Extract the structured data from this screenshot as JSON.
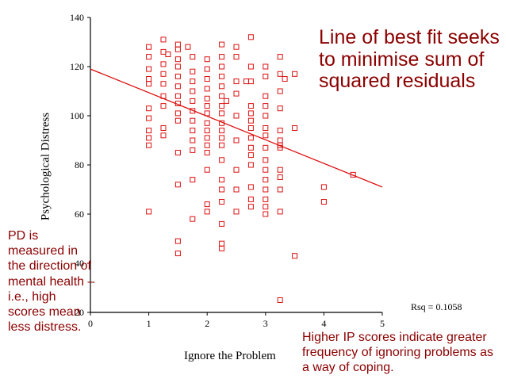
{
  "chart_data": {
    "type": "scatter",
    "xlabel": "Ignore the Problem",
    "ylabel": "Psychological Distress",
    "xlim": [
      0,
      5
    ],
    "ylim": [
      20,
      140
    ],
    "xticks": [
      "0",
      "1",
      "2",
      "3",
      "4",
      "5"
    ],
    "yticks": [
      "20",
      "40",
      "60",
      "80",
      "100",
      "120",
      "140"
    ],
    "rsq_label": "Rsq = 0.1058",
    "marker_color": "#dd1111",
    "fit_line_color": "#dd1111",
    "fit_line": {
      "x": [
        0,
        5
      ],
      "y": [
        119,
        71
      ]
    },
    "points": [
      [
        1,
        128
      ],
      [
        1,
        124
      ],
      [
        1,
        119
      ],
      [
        1,
        115
      ],
      [
        1,
        113
      ],
      [
        1,
        103
      ],
      [
        1,
        99
      ],
      [
        1,
        94
      ],
      [
        1,
        91
      ],
      [
        1,
        88
      ],
      [
        1,
        61
      ],
      [
        1.25,
        131
      ],
      [
        1.25,
        126
      ],
      [
        1.25,
        121
      ],
      [
        1.25,
        117
      ],
      [
        1.25,
        113
      ],
      [
        1.25,
        108
      ],
      [
        1.25,
        104
      ],
      [
        1.25,
        95
      ],
      [
        1.25,
        92
      ],
      [
        1.33,
        125
      ],
      [
        1.5,
        129
      ],
      [
        1.5,
        127
      ],
      [
        1.5,
        123
      ],
      [
        1.5,
        120
      ],
      [
        1.5,
        116
      ],
      [
        1.5,
        112
      ],
      [
        1.5,
        108
      ],
      [
        1.5,
        105
      ],
      [
        1.5,
        101
      ],
      [
        1.5,
        98
      ],
      [
        1.5,
        85
      ],
      [
        1.5,
        72
      ],
      [
        1.5,
        49
      ],
      [
        1.5,
        44
      ],
      [
        1.67,
        128
      ],
      [
        1.75,
        124
      ],
      [
        1.75,
        118
      ],
      [
        1.75,
        114
      ],
      [
        1.75,
        110
      ],
      [
        1.75,
        106
      ],
      [
        1.75,
        102
      ],
      [
        1.75,
        98
      ],
      [
        1.75,
        94
      ],
      [
        1.75,
        90
      ],
      [
        1.75,
        86
      ],
      [
        1.75,
        74
      ],
      [
        1.75,
        58
      ],
      [
        2,
        123
      ],
      [
        2,
        119
      ],
      [
        2,
        115
      ],
      [
        2,
        111
      ],
      [
        2,
        107
      ],
      [
        2,
        104
      ],
      [
        2,
        101
      ],
      [
        2,
        97
      ],
      [
        2,
        94
      ],
      [
        2,
        91
      ],
      [
        2,
        88
      ],
      [
        2,
        85
      ],
      [
        2,
        78
      ],
      [
        2,
        64
      ],
      [
        2,
        61
      ],
      [
        2.25,
        129
      ],
      [
        2.25,
        124
      ],
      [
        2.25,
        120
      ],
      [
        2.25,
        116
      ],
      [
        2.25,
        112
      ],
      [
        2.25,
        108
      ],
      [
        2.25,
        104
      ],
      [
        2.25,
        101
      ],
      [
        2.25,
        97
      ],
      [
        2.25,
        94
      ],
      [
        2.25,
        91
      ],
      [
        2.25,
        88
      ],
      [
        2.25,
        82
      ],
      [
        2.25,
        74
      ],
      [
        2.25,
        70
      ],
      [
        2.25,
        65
      ],
      [
        2.25,
        56
      ],
      [
        2.25,
        46
      ],
      [
        2.25,
        48
      ],
      [
        2.33,
        106
      ],
      [
        2.5,
        128
      ],
      [
        2.5,
        124
      ],
      [
        2.5,
        114
      ],
      [
        2.5,
        109
      ],
      [
        2.5,
        100
      ],
      [
        2.5,
        90
      ],
      [
        2.5,
        78
      ],
      [
        2.5,
        70
      ],
      [
        2.5,
        61
      ],
      [
        2.67,
        114
      ],
      [
        2.75,
        132
      ],
      [
        2.75,
        120
      ],
      [
        2.75,
        114
      ],
      [
        2.75,
        104
      ],
      [
        2.75,
        101
      ],
      [
        2.75,
        98
      ],
      [
        2.75,
        95
      ],
      [
        2.75,
        91
      ],
      [
        2.75,
        87
      ],
      [
        2.75,
        84
      ],
      [
        2.75,
        80
      ],
      [
        2.75,
        71
      ],
      [
        2.75,
        66
      ],
      [
        2.75,
        63
      ],
      [
        3,
        120
      ],
      [
        3,
        116
      ],
      [
        3,
        108
      ],
      [
        3,
        104
      ],
      [
        3,
        100
      ],
      [
        3,
        95
      ],
      [
        3,
        92
      ],
      [
        3,
        87
      ],
      [
        3,
        82
      ],
      [
        3,
        78
      ],
      [
        3,
        74
      ],
      [
        3,
        70
      ],
      [
        3,
        66
      ],
      [
        3,
        63
      ],
      [
        3,
        60
      ],
      [
        3.25,
        124
      ],
      [
        3.25,
        117
      ],
      [
        3.25,
        110
      ],
      [
        3.25,
        103
      ],
      [
        3.25,
        94
      ],
      [
        3.25,
        90
      ],
      [
        3.25,
        88
      ],
      [
        3.25,
        87
      ],
      [
        3.25,
        78
      ],
      [
        3.25,
        75
      ],
      [
        3.25,
        70
      ],
      [
        3.25,
        61
      ],
      [
        3.25,
        25
      ],
      [
        3.33,
        115
      ],
      [
        3.5,
        117
      ],
      [
        3.5,
        95
      ],
      [
        3.5,
        43
      ],
      [
        4,
        71
      ],
      [
        4,
        65
      ],
      [
        4.5,
        76
      ]
    ]
  },
  "annotations": {
    "top": "Line of best fit seeks to minimise sum of squared residuals",
    "left": "PD is measured in the direction of mental health – i.e., high scores mean less distress.",
    "right": "Higher IP scores indicate greater frequency of ignoring problems as a way of coping."
  }
}
